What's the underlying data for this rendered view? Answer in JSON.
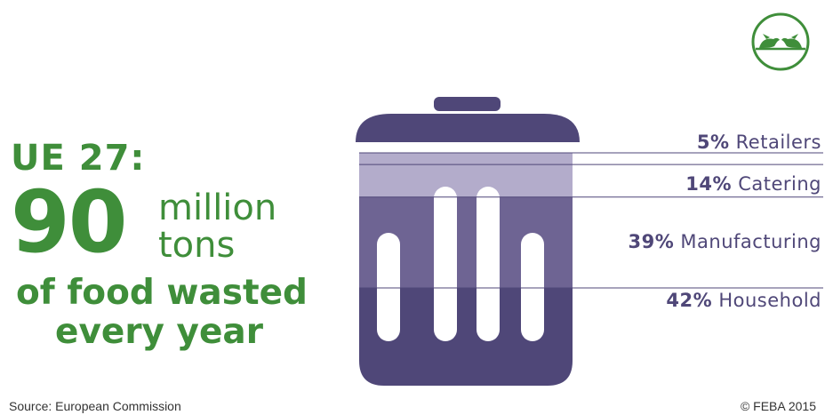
{
  "headline": {
    "region": "UE 27:",
    "amount": "90",
    "unit_line1": "million",
    "unit_line2": "tons",
    "line3": "of food wasted",
    "line4": "every year"
  },
  "footer": {
    "source": "Source: European Commission",
    "copyright": "© FEBA 2015"
  },
  "logo": {
    "icon": "feba-birds-logo-icon"
  },
  "colors": {
    "green": "#3f8e3a",
    "purple_dark": "#4f4778",
    "purple_mid": "#6e6493",
    "purple_light": "#b3accb",
    "line": "#4f4778"
  },
  "chart_data": {
    "type": "bar",
    "stacked": true,
    "total_unit": "%",
    "categories": [
      "Retailers",
      "Catering",
      "Manufacturing",
      "Household"
    ],
    "values": [
      5,
      14,
      39,
      42
    ],
    "labels": [
      "5%",
      "14%",
      "39%",
      "42%"
    ],
    "order": "top-to-bottom",
    "legend": "labels to the right of the bin"
  }
}
